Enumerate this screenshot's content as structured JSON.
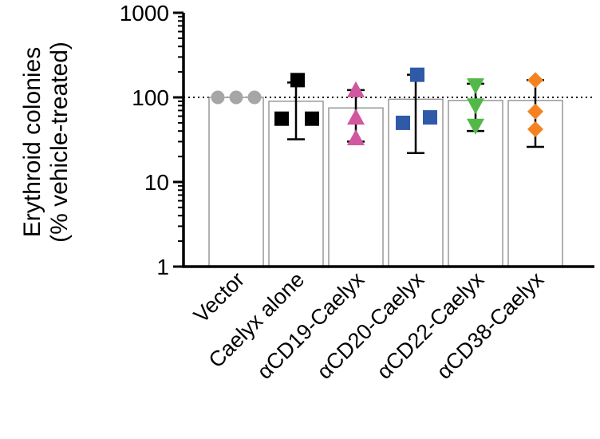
{
  "chart_data": {
    "type": "bar",
    "scale": "log",
    "ylabel_line1": "Erythroid colonies",
    "ylabel_line2": "(% vehicle-treated)",
    "ylim": [
      1,
      1000
    ],
    "yticks": [
      {
        "value": 1,
        "label": "1"
      },
      {
        "value": 10,
        "label": "10"
      },
      {
        "value": 100,
        "label": "100"
      },
      {
        "value": 1000,
        "label": "1000"
      }
    ],
    "reference_line": 100,
    "categories": [
      {
        "label": "Vector",
        "mean": 100,
        "err_low": 100,
        "err_high": 100,
        "points": [
          100,
          100,
          100
        ],
        "marker": "circle",
        "color": "#a6a6a6"
      },
      {
        "label": "Caelyx alone",
        "mean": 90,
        "err_low": 32,
        "err_high": 150,
        "points": [
          160,
          56,
          56
        ],
        "marker": "square",
        "color": "#000000"
      },
      {
        "label": "αCD19-Caelyx",
        "mean": 75,
        "err_low": 30,
        "err_high": 122,
        "points": [
          122,
          58,
          33
        ],
        "marker": "triangle-up",
        "color": "#d1579f"
      },
      {
        "label": "αCD20-Caelyx",
        "mean": 95,
        "err_low": 22,
        "err_high": 185,
        "points": [
          185,
          50,
          58
        ],
        "marker": "square",
        "color": "#2f5aa8"
      },
      {
        "label": "αCD22-Caelyx",
        "mean": 92,
        "err_low": 40,
        "err_high": 145,
        "points": [
          138,
          80,
          46
        ],
        "marker": "triangle-down",
        "color": "#52b848"
      },
      {
        "label": "αCD38-Caelyx",
        "mean": 92,
        "err_low": 26,
        "err_high": 160,
        "points": [
          160,
          68,
          42
        ],
        "marker": "diamond",
        "color": "#f58220"
      }
    ]
  }
}
